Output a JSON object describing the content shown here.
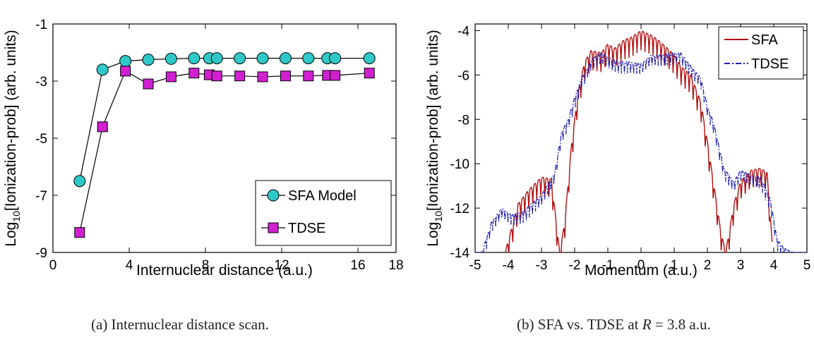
{
  "captions": {
    "a": "(a) Internuclear distance scan.",
    "b_prefix": "(b) SFA vs. TDSE at ",
    "b_math": "R",
    "b_suffix": " = 3.8 a.u."
  },
  "chart_data": [
    {
      "type": "line",
      "xlabel": "Internuclear distance (a.u.)",
      "ylabel": "Log10[Ionization-prob] (arb. units)",
      "ylabel_parts": {
        "pre": "Log",
        "sub": "10",
        "post": "[Ionization-prob] (arb. units)"
      },
      "xlim": [
        0,
        18
      ],
      "ylim": [
        -9,
        -1
      ],
      "xticks": [
        "0",
        "4",
        "8",
        "12",
        "16"
      ],
      "xtick_values": [
        0,
        4,
        8,
        12,
        16
      ],
      "yticks": [
        "-1",
        "-3",
        "-5",
        "-7",
        "-9"
      ],
      "ytick_values": [
        -1,
        -3,
        -5,
        -7,
        -9
      ],
      "extra_xtick_labels": [
        {
          "value": 18,
          "label": "18"
        }
      ],
      "grid": false,
      "legend_position": "bottom-right",
      "series": [
        {
          "name": "SFA Model",
          "marker": "circle",
          "color": "#2fc8c8",
          "x": [
            1.4,
            2.6,
            3.8,
            5.0,
            6.2,
            7.4,
            8.2,
            8.6,
            9.8,
            11.0,
            12.2,
            13.4,
            14.4,
            14.8,
            16.6
          ],
          "y": [
            -6.5,
            -2.6,
            -2.3,
            -2.25,
            -2.22,
            -2.2,
            -2.2,
            -2.2,
            -2.2,
            -2.2,
            -2.2,
            -2.2,
            -2.2,
            -2.2,
            -2.2
          ]
        },
        {
          "name": "TDSE",
          "marker": "square",
          "color": "#d020d0",
          "x": [
            1.4,
            2.6,
            3.8,
            5.0,
            6.2,
            7.4,
            8.2,
            8.6,
            9.8,
            11.0,
            12.2,
            13.4,
            14.4,
            14.8,
            16.6
          ],
          "y": [
            -8.3,
            -4.6,
            -2.65,
            -3.1,
            -2.85,
            -2.72,
            -2.78,
            -2.82,
            -2.82,
            -2.85,
            -2.82,
            -2.82,
            -2.8,
            -2.8,
            -2.72
          ]
        }
      ]
    },
    {
      "type": "line",
      "xlabel": "Momentum (a.u.)",
      "ylabel": "Log10[Ionization-prob] (arb. units)",
      "ylabel_parts": {
        "pre": "Log",
        "sub": "10",
        "post": "[Ionization-prob] (arb. units)"
      },
      "xlim": [
        -5,
        5
      ],
      "ylim": [
        -14,
        -3.7
      ],
      "xticks": [
        "-5",
        "-4",
        "-3",
        "-2",
        "-1",
        "0",
        "1",
        "2",
        "3",
        "4",
        "5"
      ],
      "xtick_values": [
        -5,
        -4,
        -3,
        -2,
        -1,
        0,
        1,
        2,
        3,
        4,
        5
      ],
      "yticks": [
        "-4",
        "-6",
        "-8",
        "-10",
        "-12",
        "-14"
      ],
      "ytick_values": [
        -4,
        -6,
        -8,
        -10,
        -12,
        -14
      ],
      "grid": false,
      "legend_position": "top-right",
      "series": [
        {
          "name": "SFA",
          "color": "#b01010",
          "style": "solid",
          "x": [
            -4.1,
            -3.7,
            -3.4,
            -3.0,
            -2.7,
            -2.45,
            -2.3,
            -2.1,
            -1.9,
            -1.7,
            -1.5,
            -1.2,
            -1.0,
            -0.8,
            -0.5,
            -0.3,
            0.0,
            0.3,
            0.5,
            0.8,
            1.0,
            1.2,
            1.5,
            1.8,
            2.0,
            2.2,
            2.4,
            2.55,
            2.8,
            3.0,
            3.3,
            3.6,
            3.8,
            3.95
          ],
          "y": [
            -14.0,
            -11.8,
            -11.2,
            -10.6,
            -10.7,
            -14.0,
            -12.6,
            -9.2,
            -6.8,
            -5.4,
            -4.9,
            -5.0,
            -4.6,
            -4.8,
            -4.4,
            -4.3,
            -4.0,
            -4.2,
            -4.4,
            -4.8,
            -5.1,
            -5.6,
            -6.0,
            -7.2,
            -9.0,
            -11.0,
            -13.0,
            -14.0,
            -11.8,
            -10.8,
            -10.3,
            -10.2,
            -10.4,
            -13.5
          ]
        },
        {
          "name": "TDSE",
          "color": "#2020b0",
          "style": "dash-dot",
          "x": [
            -5.0,
            -4.8,
            -4.5,
            -4.2,
            -3.9,
            -3.6,
            -3.3,
            -3.0,
            -2.8,
            -2.6,
            -2.4,
            -2.2,
            -2.0,
            -1.8,
            -1.5,
            -1.2,
            -1.0,
            -0.7,
            -0.4,
            0.0,
            0.3,
            0.6,
            0.9,
            1.2,
            1.4,
            1.6,
            1.8,
            2.0,
            2.2,
            2.5,
            2.8,
            3.0,
            3.3,
            3.6,
            3.9,
            4.1,
            4.3,
            4.6,
            5.0
          ],
          "y": [
            -14.0,
            -14.0,
            -12.6,
            -12.0,
            -12.3,
            -12.2,
            -11.8,
            -11.4,
            -10.9,
            -10.4,
            -8.6,
            -8.0,
            -7.0,
            -6.2,
            -5.3,
            -5.0,
            -5.2,
            -5.4,
            -5.4,
            -5.5,
            -5.1,
            -5.1,
            -5.0,
            -5.0,
            -5.4,
            -5.8,
            -6.1,
            -7.4,
            -8.2,
            -10.2,
            -10.8,
            -10.3,
            -10.5,
            -10.6,
            -11.6,
            -13.4,
            -13.8,
            -14.0,
            -14.0
          ]
        }
      ]
    }
  ]
}
